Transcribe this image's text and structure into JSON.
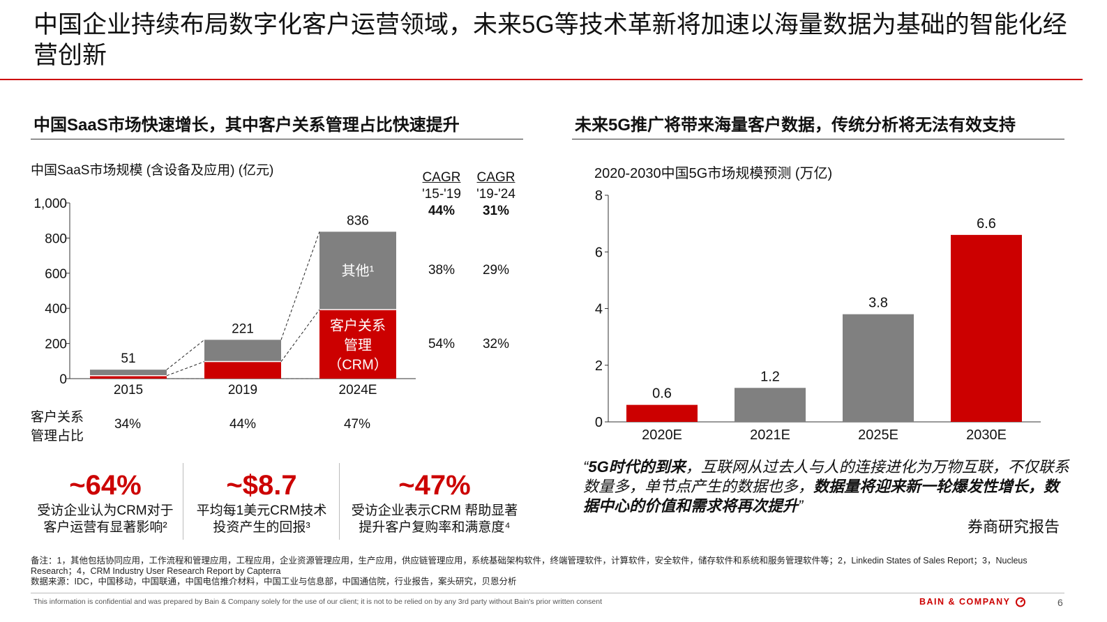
{
  "title": "中国企业持续布局数字化客户运营领域，未来5G等技术革新将加速以海量数据为基础的智能化经营创新",
  "left_section": {
    "heading": "中国SaaS市场快速增长，其中客户关系管理占比快速提升",
    "chart_title": "中国SaaS市场规模 (含设备及应用) (亿元)",
    "cagr_headers": [
      {
        "label": "CAGR",
        "period": "'15-'19"
      },
      {
        "label": "CAGR",
        "period": "'19-'24"
      }
    ],
    "cagr_total": [
      "44%",
      "31%"
    ],
    "cagr_other": [
      "38%",
      "29%"
    ],
    "cagr_crm": [
      "54%",
      "32%"
    ],
    "share_label_1": "客户关系",
    "share_label_2": "管理占比",
    "share_values": [
      "34%",
      "44%",
      "47%"
    ]
  },
  "right_section": {
    "heading": "未来5G推广将带来海量客户数据，传统分析将无法有效支持",
    "chart_title": "2020-2030中国5G市场规模预测 (万亿)"
  },
  "stats": [
    {
      "value": "~64%",
      "desc1": "受访企业认为CRM对于",
      "desc2": "客户运营有显著影响²"
    },
    {
      "value": "~$8.7",
      "desc1": "平均每1美元CRM技术",
      "desc2": "投资产生的回报³"
    },
    {
      "value": "~47%",
      "desc1": "受访企业表示CRM 帮助显著",
      "desc2": "提升客户复购率和满意度⁴"
    }
  ],
  "quote": {
    "open_mark": "“",
    "bold1": "5G时代的到来",
    "text1": "，互联网从过去人与人的连接进化为万物互联，不仅联系数量多，单节点产生的数据也多，",
    "bold2": "数据量将迎来新一轮爆发性增长，数据中心的价值和需求将再次提升",
    "close_mark": "”",
    "source": "券商研究报告"
  },
  "notes": {
    "line1": "备注：1，其他包括协同应用，工作流程和管理应用，工程应用，企业资源管理应用，生产应用，供应链管理应用，系统基础架构软件，终端管理软件，计算软件，安全软件，储存软件和系统和服务管理软件等；2，Linkedin States of Sales Report；3，Nucleus Research；4，CRM Industry User Research Report by Capterra",
    "line2": "数据来源：IDC，中国移动，中国联通，中国电信推介材料，中国工业与信息部，中国通信院，行业报告，案头研究，贝恩分析"
  },
  "footer": {
    "confidential": "This information is confidential and was prepared by Bain & Company solely for the use of our client; it is not to be relied on by any 3rd party without Bain's prior written consent",
    "brand": "BAIN & COMPANY",
    "page": "6"
  },
  "colors": {
    "red": "#cc0000",
    "gray": "#808080"
  },
  "chart_data": [
    {
      "type": "bar",
      "stacked": true,
      "title": "中国SaaS市场规模 (含设备及应用) (亿元)",
      "categories": [
        "2015",
        "2019",
        "2024E"
      ],
      "ylim": [
        0,
        1000
      ],
      "yticks": [
        "0",
        "200",
        "400",
        "600",
        "800",
        "1,000"
      ],
      "totals": [
        51,
        221,
        836
      ],
      "total_labels": [
        "51",
        "221",
        "836"
      ],
      "series": [
        {
          "name": "客户关系管理（CRM）",
          "color": "#cc0000",
          "values": [
            17,
            97,
            393
          ]
        },
        {
          "name": "其他¹",
          "color": "#808080",
          "values": [
            34,
            124,
            443
          ]
        }
      ],
      "segment_labels": {
        "crm_line1": "客户关系",
        "crm_line2": "管理",
        "crm_line3": "（CRM）",
        "other": "其他¹"
      }
    },
    {
      "type": "bar",
      "title": "2020-2030中国5G市场规模预测 (万亿)",
      "categories": [
        "2020E",
        "2021E",
        "2025E",
        "2030E"
      ],
      "values": [
        0.6,
        1.2,
        3.8,
        6.6
      ],
      "value_labels": [
        "0.6",
        "1.2",
        "3.8",
        "6.6"
      ],
      "colors": [
        "#cc0000",
        "#808080",
        "#808080",
        "#cc0000"
      ],
      "ylim": [
        0,
        8
      ],
      "yticks": [
        "0",
        "2",
        "4",
        "6",
        "8"
      ]
    }
  ]
}
